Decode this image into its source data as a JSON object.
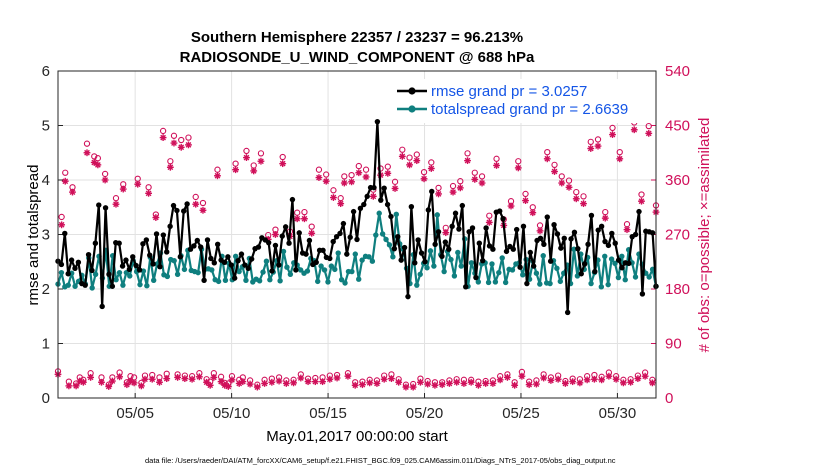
{
  "chart_data": {
    "type": "line",
    "title_line1": "Southern Hemisphere 22357 / 23237 = 96.213%",
    "title_line2": "RADIOSONDE_U_WIND_COMPONENT @ 688 hPa",
    "xlabel": "May.01,2017 00:00:00 start",
    "ylabel_left": "rmse and totalspread",
    "ylabel_right": "# of obs: o=possible; ×=assimilated",
    "footnote": "data file: /Users/raeder/DAI/ATM_forcXX/CAM6_setup/f.e21.FHIST_BGC.f09_025.CAM6assim.011/Diags_NTrS_2017-05/obs_diag_output.nc",
    "x_range_days": [
      1,
      32
    ],
    "ylim_left": [
      0,
      6
    ],
    "ylim_right": [
      0,
      540
    ],
    "x_ticks": [
      {
        "day": 5,
        "label": "05/05"
      },
      {
        "day": 10,
        "label": "05/10"
      },
      {
        "day": 15,
        "label": "05/15"
      },
      {
        "day": 20,
        "label": "05/20"
      },
      {
        "day": 25,
        "label": "05/25"
      },
      {
        "day": 30,
        "label": "05/30"
      }
    ],
    "y_ticks_left": [
      "0",
      "1",
      "2",
      "3",
      "4",
      "5",
      "6"
    ],
    "y_ticks_right": [
      "0",
      "90",
      "180",
      "270",
      "360",
      "450",
      "540"
    ],
    "grid": true,
    "legend": {
      "position": "top-right",
      "entries": [
        "rmse grand pr = 3.0257",
        "totalspread grand pr = 2.6639"
      ]
    },
    "series": [
      {
        "name": "rmse grand pr = 3.0257",
        "axis": "left",
        "color": "#000000",
        "marker": "circle",
        "values": [
          2.51,
          2.45,
          3.02,
          2.28,
          2.53,
          2.38,
          2.49,
          2.1,
          2.07,
          2.63,
          2.34,
          2.84,
          3.54,
          1.68,
          3.49,
          2.27,
          2.05,
          2.85,
          2.84,
          2.42,
          2.53,
          2.36,
          2.59,
          2.43,
          2.35,
          2.83,
          2.9,
          2.62,
          2.46,
          3.01,
          2.41,
          2.99,
          2.68,
          3.15,
          3.53,
          3.44,
          2.59,
          3.43,
          3.56,
          2.73,
          2.79,
          2.89,
          2.77,
          2.16,
          2.9,
          2.56,
          2.48,
          2.82,
          2.53,
          2.49,
          2.59,
          2.44,
          2.2,
          2.52,
          2.64,
          2.44,
          2.38,
          2.55,
          2.74,
          2.77,
          2.94,
          2.9,
          2.85,
          2.33,
          2.8,
          2.44,
          2.97,
          3.14,
          2.84,
          3.64,
          2.35,
          3.03,
          2.66,
          2.64,
          2.89,
          2.45,
          2.49,
          2.71,
          2.71,
          2.58,
          2.56,
          2.87,
          2.96,
          3.02,
          3.2,
          2.64,
          2.95,
          3.42,
          2.91,
          3.48,
          3.55,
          3.7,
          3.86,
          3.86,
          5.07,
          3.63,
          3.85,
          3.55,
          3.33,
          2.74,
          2.96,
          2.53,
          2.76,
          1.86,
          3.51,
          2.48,
          2.9,
          2.66,
          2.5,
          3.45,
          3.79,
          2.82,
          3.05,
          2.6,
          2.86,
          2.73,
          3.15,
          3.39,
          3.1,
          3.53,
          2.04,
          3.05,
          3.12,
          2.21,
          2.84,
          2.52,
          3.12,
          2.79,
          2.73,
          3.41,
          3.43,
          3.29,
          2.69,
          2.78,
          2.73,
          3.09,
          2.4,
          3.15,
          2.1,
          2.67,
          2.42,
          2.89,
          2.93,
          2.82,
          3.32,
          2.51,
          3.18,
          3.01,
          2.75,
          2.93,
          1.57,
          2.92,
          3.04,
          2.74,
          2.28,
          2.46,
          2.82,
          3.35,
          2.32,
          3.08,
          3.15,
          2.87,
          2.8,
          3.02,
          2.84,
          2.53,
          2.39,
          2.48,
          2.47,
          2.96,
          3.0,
          3.42,
          1.91,
          3.06,
          3.05,
          3.03,
          2.05
        ]
      },
      {
        "name": "totalspread grand pr = 2.6639",
        "axis": "left",
        "color": "#0f7f7f",
        "marker": "circle",
        "values": [
          2.09,
          2.3,
          2.04,
          2.07,
          2.29,
          2.05,
          2.14,
          2.25,
          2.09,
          2.57,
          2.02,
          2.27,
          2.6,
          2.2,
          2.71,
          2.05,
          2.61,
          2.17,
          2.3,
          2.07,
          2.3,
          2.24,
          2.52,
          2.32,
          2.08,
          2.33,
          2.06,
          2.58,
          2.16,
          2.46,
          2.66,
          2.26,
          2.23,
          2.54,
          2.52,
          2.27,
          2.61,
          2.36,
          2.71,
          2.34,
          2.32,
          2.3,
          2.73,
          2.36,
          2.37,
          2.35,
          2.17,
          2.14,
          2.6,
          2.16,
          2.47,
          2.17,
          2.6,
          2.32,
          2.41,
          2.16,
          2.56,
          2.13,
          2.18,
          2.15,
          2.31,
          2.51,
          2.17,
          2.31,
          2.52,
          2.15,
          2.69,
          2.4,
          2.27,
          2.48,
          2.44,
          2.35,
          2.29,
          2.33,
          2.56,
          2.52,
          2.14,
          2.42,
          2.35,
          2.13,
          2.42,
          2.36,
          2.66,
          2.17,
          2.11,
          2.32,
          2.32,
          2.64,
          2.18,
          2.53,
          2.6,
          2.59,
          2.51,
          2.99,
          3.39,
          3.01,
          2.91,
          2.81,
          2.59,
          3.37,
          2.83,
          2.73,
          2.38,
          2.1,
          2.63,
          2.07,
          2.27,
          2.47,
          2.39,
          2.7,
          2.42,
          3.36,
          2.63,
          2.32,
          2.69,
          2.54,
          2.24,
          2.67,
          2.42,
          2.92,
          2.05,
          2.48,
          2.29,
          2.13,
          2.46,
          2.48,
          2.12,
          2.46,
          2.13,
          2.3,
          2.57,
          2.12,
          2.36,
          2.35,
          2.46,
          2.48,
          2.26,
          2.54,
          2.18,
          2.51,
          2.29,
          2.09,
          2.61,
          2.11,
          2.1,
          2.52,
          2.38,
          2.14,
          2.29,
          2.44,
          2.1,
          2.73,
          2.24,
          2.64,
          2.36,
          2.58,
          2.1,
          2.3,
          2.53,
          2.04,
          2.6,
          2.08,
          2.55,
          2.47,
          2.21,
          2.6,
          2.17,
          2.72,
          2.48,
          2.22,
          2.64,
          2.45,
          2.29,
          2.22,
          2.36,
          2.05
        ]
      }
    ],
    "obs_possible": {
      "name": "# of obs possible",
      "axis": "right",
      "marker": "o",
      "color": "#d0105a",
      "values": [
        44,
        299,
        372,
        27,
        348,
        24,
        34,
        30,
        420,
        41,
        399,
        396,
        34,
        370,
        22,
        34,
        330,
        42,
        353,
        26,
        36,
        34,
        362,
        25,
        37,
        348,
        38,
        303,
        34,
        441,
        40,
        391,
        433,
        39,
        426,
        37,
        430,
        36,
        332,
        41,
        322,
        31,
        27,
        41,
        377,
        35,
        25,
        24,
        36,
        387,
        30,
        34,
        408,
        29,
        384,
        22,
        404,
        30,
        269,
        32,
        278,
        34,
        398,
        29,
        275,
        30,
        306,
        39,
        307,
        32,
        283,
        33,
        377,
        34,
        369,
        37,
        343,
        38,
        330,
        366,
        41,
        368,
        26,
        383,
        27,
        377,
        30,
        344,
        29,
        379,
        37,
        382,
        39,
        357,
        31,
        410,
        22,
        397,
        23,
        402,
        32,
        373,
        28,
        389,
        26,
        347,
        26,
        281,
        29,
        350,
        31,
        358,
        30,
        404,
        30,
        372,
        27,
        366,
        28,
        301,
        29,
        395,
        36,
        295,
        39,
        325,
        26,
        391,
        43,
        337,
        27,
        315,
        29,
        285,
        39,
        406,
        34,
        385,
        37,
        366,
        28,
        359,
        32,
        340,
        31,
        333,
        36,
        423,
        38,
        427,
        35,
        307,
        42,
        446,
        36,
        406,
        30,
        287,
        31,
        455,
        37,
        336,
        42,
        449,
        30,
        318
      ]
    },
    "obs_assimilated": {
      "name": "# of obs assimilated",
      "axis": "right",
      "marker": "asterisk",
      "color": "#d0105a",
      "values": [
        39,
        286,
        358,
        20,
        340,
        20,
        28,
        26,
        405,
        34,
        389,
        385,
        26,
        360,
        19,
        28,
        320,
        35,
        345,
        22,
        28,
        25,
        353,
        20,
        31,
        338,
        31,
        298,
        26,
        430,
        32,
        381,
        421,
        34,
        414,
        32,
        418,
        31,
        320,
        35,
        310,
        26,
        21,
        34,
        367,
        27,
        21,
        19,
        30,
        377,
        24,
        27,
        397,
        23,
        375,
        18,
        391,
        24,
        262,
        26,
        270,
        28,
        387,
        24,
        267,
        25,
        296,
        33,
        296,
        27,
        272,
        27,
        364,
        27,
        358,
        31,
        331,
        33,
        321,
        355,
        36,
        357,
        21,
        372,
        22,
        365,
        25,
        333,
        24,
        368,
        31,
        371,
        32,
        346,
        26,
        399,
        18,
        385,
        18,
        392,
        26,
        362,
        23,
        379,
        21,
        337,
        22,
        273,
        24,
        340,
        26,
        347,
        24,
        392,
        26,
        361,
        21,
        355,
        24,
        290,
        24,
        384,
        30,
        285,
        34,
        317,
        21,
        380,
        36,
        326,
        22,
        306,
        23,
        276,
        33,
        395,
        29,
        374,
        31,
        355,
        24,
        348,
        27,
        329,
        25,
        321,
        30,
        412,
        31,
        416,
        30,
        297,
        36,
        435,
        31,
        395,
        25,
        278,
        26,
        443,
        32,
        325,
        36,
        437,
        25,
        307
      ]
    }
  }
}
